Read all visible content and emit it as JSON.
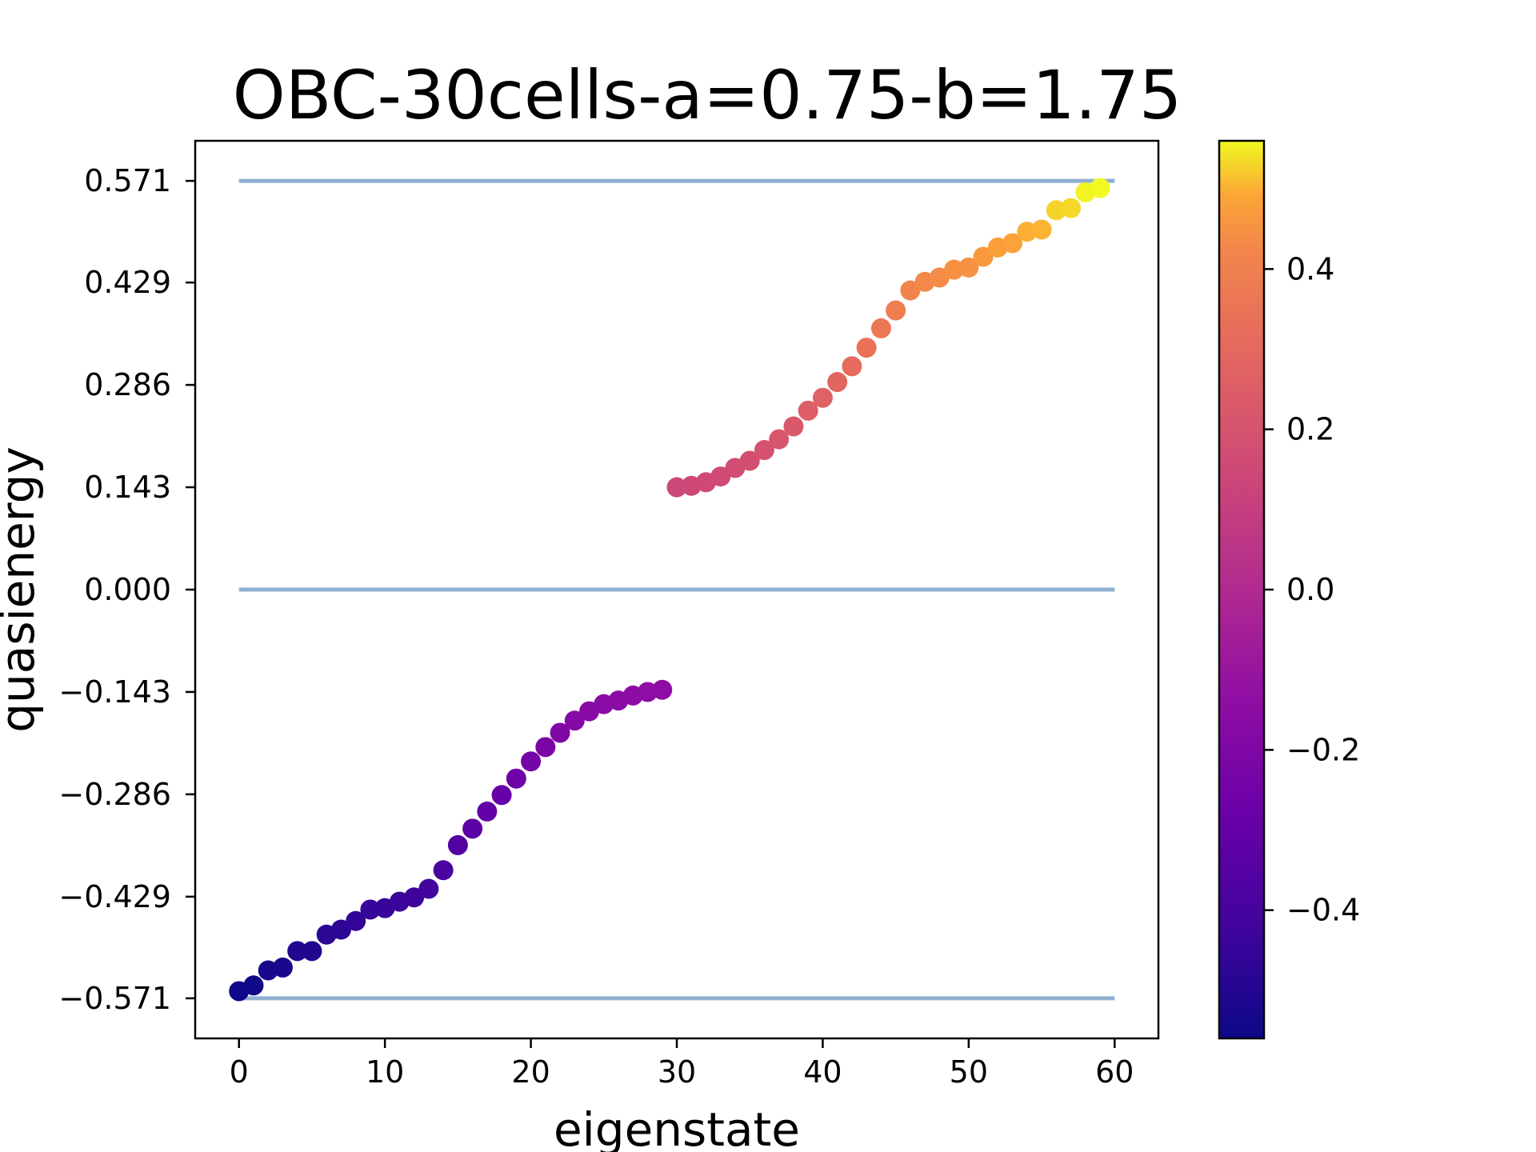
{
  "chart_data": {
    "type": "scatter",
    "title": "OBC-30cells-a=0.75-b=1.75",
    "xlabel": "eigenstate",
    "ylabel": "quasienergy",
    "xlim": [
      -3,
      63
    ],
    "ylim": [
      -0.627,
      0.627
    ],
    "x_ticks": [
      0,
      10,
      20,
      30,
      40,
      50,
      60
    ],
    "x_tick_labels": [
      "0",
      "10",
      "20",
      "30",
      "40",
      "50",
      "60"
    ],
    "y_ticks": [
      0.571,
      0.429,
      0.286,
      0.143,
      0.0,
      -0.143,
      -0.286,
      -0.429,
      -0.571
    ],
    "y_tick_labels": [
      "0.571",
      "0.429",
      "0.286",
      "0.143",
      "0.000",
      "−0.143",
      "−0.286",
      "−0.429",
      "−0.571"
    ],
    "grid": false,
    "reference_lines": [
      {
        "y": 0.571,
        "x_range": [
          0,
          60
        ],
        "color": "#8fb0d0"
      },
      {
        "y": 0.0,
        "x_range": [
          0,
          60
        ],
        "color": "#8fb0d0"
      },
      {
        "y": -0.571,
        "x_range": [
          0,
          60
        ],
        "color": "#8fb0d0"
      }
    ],
    "colormap": "plasma",
    "colorbar": {
      "range": [
        -0.56,
        0.56
      ],
      "ticks": [
        0.4,
        0.2,
        0.0,
        -0.2,
        -0.4
      ],
      "tick_labels": [
        "0.4",
        "0.2",
        "0.0",
        "−0.2",
        "−0.4"
      ],
      "placement": "right"
    },
    "points": {
      "x": [
        0,
        1,
        2,
        3,
        4,
        5,
        6,
        7,
        8,
        9,
        10,
        11,
        12,
        13,
        14,
        15,
        16,
        17,
        18,
        19,
        20,
        21,
        22,
        23,
        24,
        25,
        26,
        27,
        28,
        29,
        30,
        31,
        32,
        33,
        34,
        35,
        36,
        37,
        38,
        39,
        40,
        41,
        42,
        43,
        44,
        45,
        46,
        47,
        48,
        49,
        50,
        51,
        52,
        53,
        54,
        55,
        56,
        57,
        58,
        59
      ],
      "y": [
        -0.561,
        -0.553,
        -0.532,
        -0.528,
        -0.505,
        -0.505,
        -0.482,
        -0.475,
        -0.463,
        -0.447,
        -0.445,
        -0.436,
        -0.43,
        -0.418,
        -0.392,
        -0.357,
        -0.334,
        -0.31,
        -0.287,
        -0.264,
        -0.24,
        -0.22,
        -0.2,
        -0.183,
        -0.17,
        -0.16,
        -0.155,
        -0.148,
        -0.143,
        -0.14,
        0.143,
        0.145,
        0.15,
        0.158,
        0.17,
        0.18,
        0.195,
        0.21,
        0.228,
        0.25,
        0.268,
        0.29,
        0.312,
        0.338,
        0.365,
        0.39,
        0.418,
        0.43,
        0.436,
        0.447,
        0.45,
        0.465,
        0.478,
        0.484,
        0.5,
        0.503,
        0.53,
        0.533,
        0.555,
        0.561
      ],
      "color_value": [
        -0.561,
        -0.553,
        -0.532,
        -0.528,
        -0.505,
        -0.505,
        -0.482,
        -0.475,
        -0.463,
        -0.447,
        -0.445,
        -0.436,
        -0.43,
        -0.418,
        -0.392,
        -0.357,
        -0.334,
        -0.31,
        -0.287,
        -0.264,
        -0.24,
        -0.22,
        -0.2,
        -0.183,
        -0.17,
        -0.16,
        -0.155,
        -0.148,
        -0.143,
        -0.14,
        0.143,
        0.145,
        0.15,
        0.158,
        0.17,
        0.18,
        0.195,
        0.21,
        0.228,
        0.25,
        0.268,
        0.29,
        0.312,
        0.338,
        0.365,
        0.39,
        0.418,
        0.43,
        0.436,
        0.447,
        0.45,
        0.465,
        0.478,
        0.484,
        0.5,
        0.503,
        0.53,
        0.533,
        0.555,
        0.561
      ]
    }
  }
}
